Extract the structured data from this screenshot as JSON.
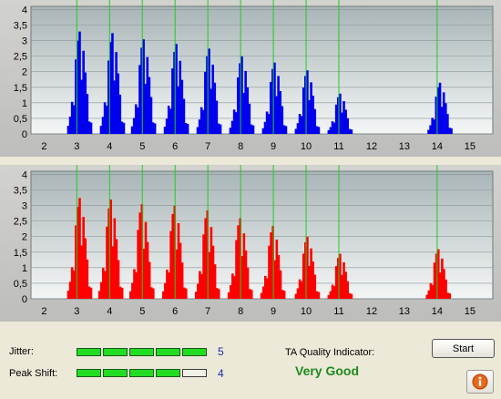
{
  "charts": {
    "x_ticks": [
      "2",
      "3",
      "4",
      "5",
      "6",
      "7",
      "8",
      "9",
      "10",
      "11",
      "12",
      "13",
      "14",
      "15"
    ],
    "y_ticks": [
      "0",
      "0,5",
      "1",
      "1,5",
      "2",
      "2,5",
      "3",
      "3,5",
      "4"
    ],
    "marker_lines_at": [
      3,
      4,
      5,
      6,
      7,
      8,
      9,
      10,
      11,
      14
    ],
    "colors": {
      "top_bars": "#0000ee",
      "bottom_bars": "#ff0000",
      "marker_line": "#22cc22"
    }
  },
  "chart_data": [
    {
      "type": "bar",
      "xlim": [
        1.6,
        15.7
      ],
      "ylim": [
        0,
        4.1
      ],
      "peaks": [
        {
          "center": 3.1,
          "height": 3.3
        },
        {
          "center": 4.1,
          "height": 3.25
        },
        {
          "center": 5.05,
          "height": 3.05
        },
        {
          "center": 6.05,
          "height": 2.9
        },
        {
          "center": 7.05,
          "height": 2.75
        },
        {
          "center": 8.05,
          "height": 2.5
        },
        {
          "center": 9.05,
          "height": 2.3
        },
        {
          "center": 10.05,
          "height": 2.05
        },
        {
          "center": 11.05,
          "height": 1.3
        },
        {
          "center": 14.1,
          "height": 1.65
        }
      ]
    },
    {
      "type": "bar",
      "xlim": [
        1.6,
        15.7
      ],
      "ylim": [
        0,
        4.1
      ],
      "peaks": [
        {
          "center": 3.1,
          "height": 3.25
        },
        {
          "center": 4.05,
          "height": 3.2
        },
        {
          "center": 5.0,
          "height": 3.05
        },
        {
          "center": 6.0,
          "height": 3.0
        },
        {
          "center": 7.0,
          "height": 2.85
        },
        {
          "center": 8.0,
          "height": 2.6
        },
        {
          "center": 9.0,
          "height": 2.35
        },
        {
          "center": 10.05,
          "height": 2.0
        },
        {
          "center": 11.05,
          "height": 1.45
        },
        {
          "center": 14.05,
          "height": 1.6
        }
      ]
    }
  ],
  "jitter": {
    "label": "Jitter:",
    "value": "5",
    "level": 5,
    "max": 5
  },
  "peak_shift": {
    "label": "Peak Shift:",
    "value": "4",
    "level": 4,
    "max": 5
  },
  "quality": {
    "label": "TA Quality Indicator:",
    "value": "Very Good"
  },
  "start_button": {
    "label": "Start"
  },
  "info_icon": "info-icon"
}
